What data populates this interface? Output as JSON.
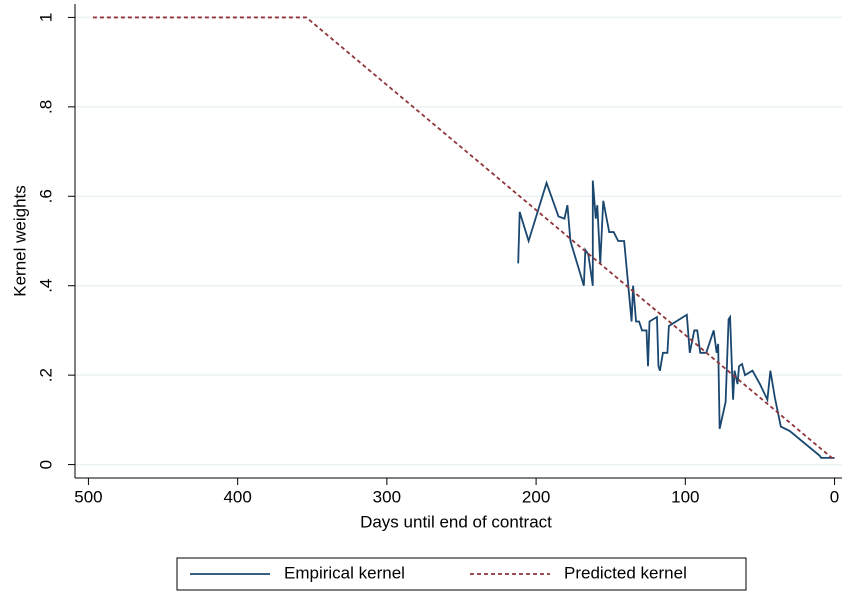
{
  "chart_data": {
    "type": "line",
    "xlabel": "Days until end of contract",
    "ylabel": "Kernel weights",
    "xlim": [
      509,
      -5
    ],
    "ylim": [
      -0.03,
      1.03
    ],
    "xticks": [
      500,
      400,
      300,
      200,
      100,
      0
    ],
    "yticks": [
      0,
      {
        "value": 0.2,
        "label": ".2"
      },
      {
        "value": 0.4,
        "label": ".4"
      },
      {
        "value": 0.6,
        "label": ".6"
      },
      {
        "value": 0.8,
        "label": ".8"
      },
      1
    ],
    "grid": true,
    "legend": "bottom",
    "series": [
      {
        "name": "Empirical kernel",
        "color": "#1a476f",
        "style": "solid",
        "x": [
          212,
          211,
          205,
          193,
          185,
          181,
          179,
          177,
          168,
          167,
          165,
          162,
          162,
          160,
          159,
          157,
          155,
          151,
          148,
          145,
          141,
          136,
          135,
          133,
          131,
          129,
          126,
          125,
          124,
          119,
          118,
          117,
          115,
          112,
          111,
          99,
          97,
          94,
          92,
          90,
          86,
          81,
          79,
          78,
          77,
          73,
          71,
          70,
          68,
          67,
          65,
          64,
          62,
          60,
          55,
          50,
          45,
          43,
          40,
          36,
          30,
          10,
          9,
          0
        ],
        "values": [
          0.45,
          0.565,
          0.5,
          0.63,
          0.555,
          0.55,
          0.58,
          0.5,
          0.4,
          0.48,
          0.47,
          0.4,
          0.635,
          0.55,
          0.58,
          0.45,
          0.59,
          0.52,
          0.52,
          0.5,
          0.5,
          0.32,
          0.4,
          0.32,
          0.32,
          0.3,
          0.3,
          0.22,
          0.32,
          0.33,
          0.22,
          0.21,
          0.25,
          0.25,
          0.31,
          0.335,
          0.25,
          0.3,
          0.3,
          0.25,
          0.25,
          0.3,
          0.25,
          0.27,
          0.08,
          0.14,
          0.325,
          0.33,
          0.145,
          0.21,
          0.18,
          0.22,
          0.225,
          0.2,
          0.21,
          0.18,
          0.145,
          0.21,
          0.15,
          0.085,
          0.075,
          0.02,
          0.015,
          0.015
        ]
      },
      {
        "name": "Predicted kernel",
        "color": "#90353b",
        "style": "dashed",
        "x": [
          497,
          354,
          0
        ],
        "values": [
          1,
          1,
          0.01
        ]
      }
    ]
  }
}
